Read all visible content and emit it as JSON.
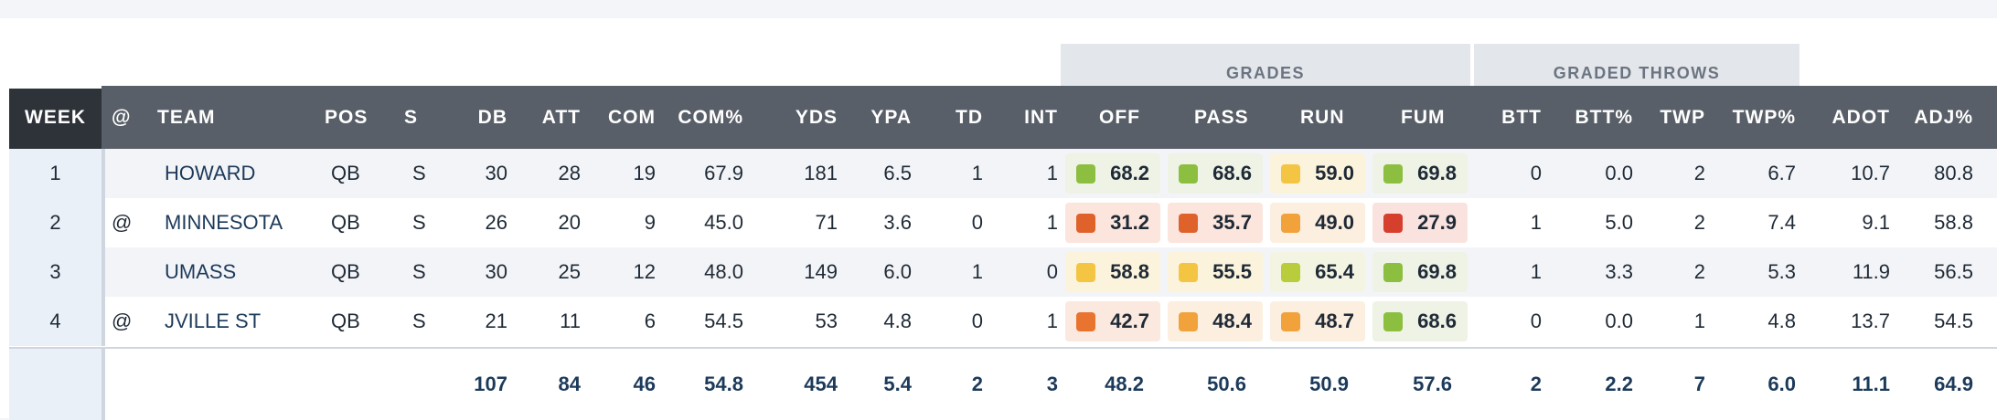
{
  "groups": {
    "grades": "GRADES",
    "graded_throws": "GRADED THROWS"
  },
  "columns": {
    "week": "WEEK",
    "at": "@",
    "team": "TEAM",
    "pos": "POS",
    "s": "S",
    "db": "DB",
    "att": "ATT",
    "com": "COM",
    "com_pct": "COM%",
    "yds": "YDS",
    "ypa": "YPA",
    "td": "TD",
    "int": "INT",
    "off": "OFF",
    "pass": "PASS",
    "run": "RUN",
    "fum": "FUM",
    "btt": "BTT",
    "btt_pct": "BTT%",
    "twp": "TWP",
    "twp_pct": "TWP%",
    "adot": "ADOT",
    "adj_pct": "ADJ%"
  },
  "grade_colors": {
    "green": "#8cbf3f",
    "green_bg": "#eef3e6",
    "yellowgreen": "#b8cc3c",
    "yellowgreen_bg": "#f3f4e2",
    "yellow": "#f4c542",
    "yellow_bg": "#fbf3dc",
    "light_orange": "#f1a23b",
    "light_orange_bg": "#fcefe0",
    "orange": "#e8742f",
    "orange_bg": "#fbe9df",
    "orange_red": "#e0622b",
    "orange_red_bg": "#fbe5dc",
    "red": "#d63f2e",
    "red_bg": "#fae3df"
  },
  "rows": [
    {
      "week": "1",
      "at": "",
      "team": "HOWARD",
      "pos": "QB",
      "s": "S",
      "db": "30",
      "att": "28",
      "com": "19",
      "com_pct": "67.9",
      "yds": "181",
      "ypa": "6.5",
      "td": "1",
      "int": "1",
      "off": "68.2",
      "pass": "68.6",
      "run": "59.0",
      "fum": "69.8",
      "grade_tones": {
        "off": "green",
        "pass": "green",
        "run": "yellow",
        "fum": "green"
      },
      "btt": "0",
      "btt_pct": "0.0",
      "twp": "2",
      "twp_pct": "6.7",
      "adot": "10.7",
      "adj_pct": "80.8"
    },
    {
      "week": "2",
      "at": "@",
      "team": "MINNESOTA",
      "pos": "QB",
      "s": "S",
      "db": "26",
      "att": "20",
      "com": "9",
      "com_pct": "45.0",
      "yds": "71",
      "ypa": "3.6",
      "td": "0",
      "int": "1",
      "off": "31.2",
      "pass": "35.7",
      "run": "49.0",
      "fum": "27.9",
      "grade_tones": {
        "off": "orange_red",
        "pass": "orange_red",
        "run": "light_orange",
        "fum": "red"
      },
      "btt": "1",
      "btt_pct": "5.0",
      "twp": "2",
      "twp_pct": "7.4",
      "adot": "9.1",
      "adj_pct": "58.8"
    },
    {
      "week": "3",
      "at": "",
      "team": "UMASS",
      "pos": "QB",
      "s": "S",
      "db": "30",
      "att": "25",
      "com": "12",
      "com_pct": "48.0",
      "yds": "149",
      "ypa": "6.0",
      "td": "1",
      "int": "0",
      "off": "58.8",
      "pass": "55.5",
      "run": "65.4",
      "fum": "69.8",
      "grade_tones": {
        "off": "yellow",
        "pass": "yellow",
        "run": "yellowgreen",
        "fum": "green"
      },
      "btt": "1",
      "btt_pct": "3.3",
      "twp": "2",
      "twp_pct": "5.3",
      "adot": "11.9",
      "adj_pct": "56.5"
    },
    {
      "week": "4",
      "at": "@",
      "team": "JVILLE ST",
      "pos": "QB",
      "s": "S",
      "db": "21",
      "att": "11",
      "com": "6",
      "com_pct": "54.5",
      "yds": "53",
      "ypa": "4.8",
      "td": "0",
      "int": "1",
      "off": "42.7",
      "pass": "48.4",
      "run": "48.7",
      "fum": "68.6",
      "grade_tones": {
        "off": "orange",
        "pass": "light_orange",
        "run": "light_orange",
        "fum": "green"
      },
      "btt": "0",
      "btt_pct": "0.0",
      "twp": "1",
      "twp_pct": "4.8",
      "adot": "13.7",
      "adj_pct": "54.5"
    }
  ],
  "totals": {
    "db": "107",
    "att": "84",
    "com": "46",
    "com_pct": "54.8",
    "yds": "454",
    "ypa": "5.4",
    "td": "2",
    "int": "3",
    "off": "48.2",
    "pass": "50.6",
    "run": "50.9",
    "fum": "57.6",
    "btt": "2",
    "btt_pct": "2.2",
    "twp": "7",
    "twp_pct": "6.0",
    "adot": "11.1",
    "adj_pct": "64.9"
  }
}
